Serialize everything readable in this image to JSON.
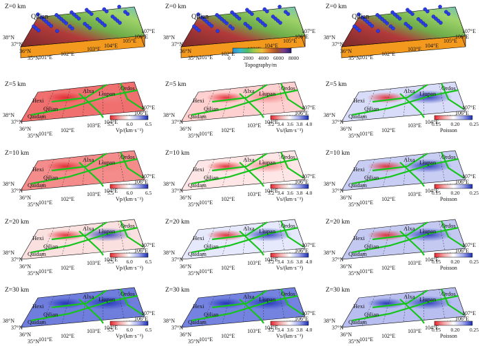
{
  "figure": {
    "rows": [
      {
        "depth": "Z=0 km",
        "type": "topo"
      },
      {
        "depth": "Z=5 km",
        "type": "tomo"
      },
      {
        "depth": "Z=10 km",
        "type": "tomo"
      },
      {
        "depth": "Z=20 km",
        "type": "tomo"
      },
      {
        "depth": "Z=30 km",
        "type": "tomo"
      }
    ],
    "columns": [
      "Vp",
      "Vs",
      "Poisson"
    ],
    "lat_labels": [
      "38°N",
      "37°N",
      "36°N",
      "35°N"
    ],
    "lon_labels": [
      "101°E",
      "102°E",
      "103°E",
      "104°E",
      "105°E",
      "106°E",
      "107°E"
    ],
    "regions": {
      "qilian": "Qilian",
      "alxa": "Alxa",
      "hexi": "Hexi",
      "ordos": "Ordos",
      "liupan": "Liupan",
      "qaidam": "Qaidam",
      "ordos_short": "Ordos"
    },
    "colorbars": {
      "topo": {
        "ticks": [
          "0",
          "2000",
          "4000",
          "6000",
          "8000"
        ],
        "label": "Topography/m",
        "colors": [
          "#2a8fd8",
          "#3fb7c9",
          "#4dbd6a",
          "#a7c94a",
          "#e9c03c",
          "#e07a2a",
          "#a0522d",
          "#7a3c8c",
          "#1f1f6e"
        ]
      },
      "vp": {
        "ticks": [
          "5.5",
          "6.0",
          "6.5"
        ],
        "label": "Vp/(km·s⁻¹)"
      },
      "vs": {
        "ticks": [
          "3.2",
          "3.4",
          "3.6",
          "3.8",
          "4.0"
        ],
        "label": "Vs/(km·s⁻¹)"
      },
      "poisson": {
        "ticks": [
          "0.15",
          "0.20",
          "0.25"
        ],
        "label": "Poisson"
      }
    },
    "colors": {
      "low": "#e8232b",
      "mid": "#ffffff",
      "high": "#1c2fb5",
      "fault": "#16c41c",
      "block": "#ff8c00"
    }
  }
}
